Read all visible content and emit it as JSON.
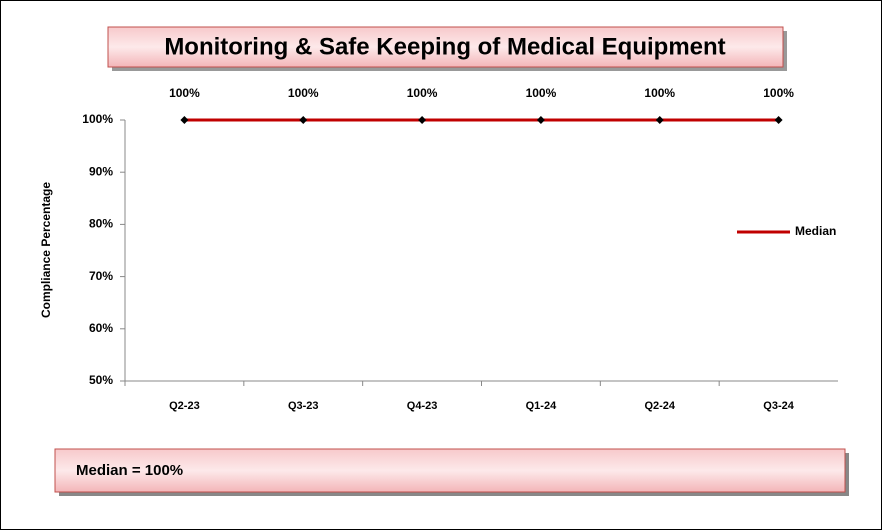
{
  "chart_data": {
    "type": "line",
    "title": "Monitoring & Safe Keeping of Medical Equipment",
    "y_label": "Compliance Percentage",
    "categories": [
      "Q2-23",
      "Q3-23",
      "Q4-23",
      "Q1-24",
      "Q2-24",
      "Q3-24"
    ],
    "series": [
      {
        "color": "#000000",
        "values": [
          100,
          100,
          100,
          100,
          100,
          100
        ],
        "value_labels": [
          "100%",
          "100%",
          "100%",
          "100%",
          "100%",
          "100%"
        ]
      },
      {
        "name": "Median",
        "color": "#c00000",
        "values": [
          100,
          100,
          100,
          100,
          100,
          100
        ]
      }
    ],
    "ylim": [
      50,
      100
    ],
    "yticks": [
      {
        "value": 50,
        "label": "50%"
      },
      {
        "value": 60,
        "label": "60%"
      },
      {
        "value": 70,
        "label": "70%"
      },
      {
        "value": 80,
        "label": "80%"
      },
      {
        "value": 90,
        "label": "90%"
      },
      {
        "value": 100,
        "label": "100%"
      }
    ],
    "legend": "right",
    "annotation": "Median = 100%"
  }
}
